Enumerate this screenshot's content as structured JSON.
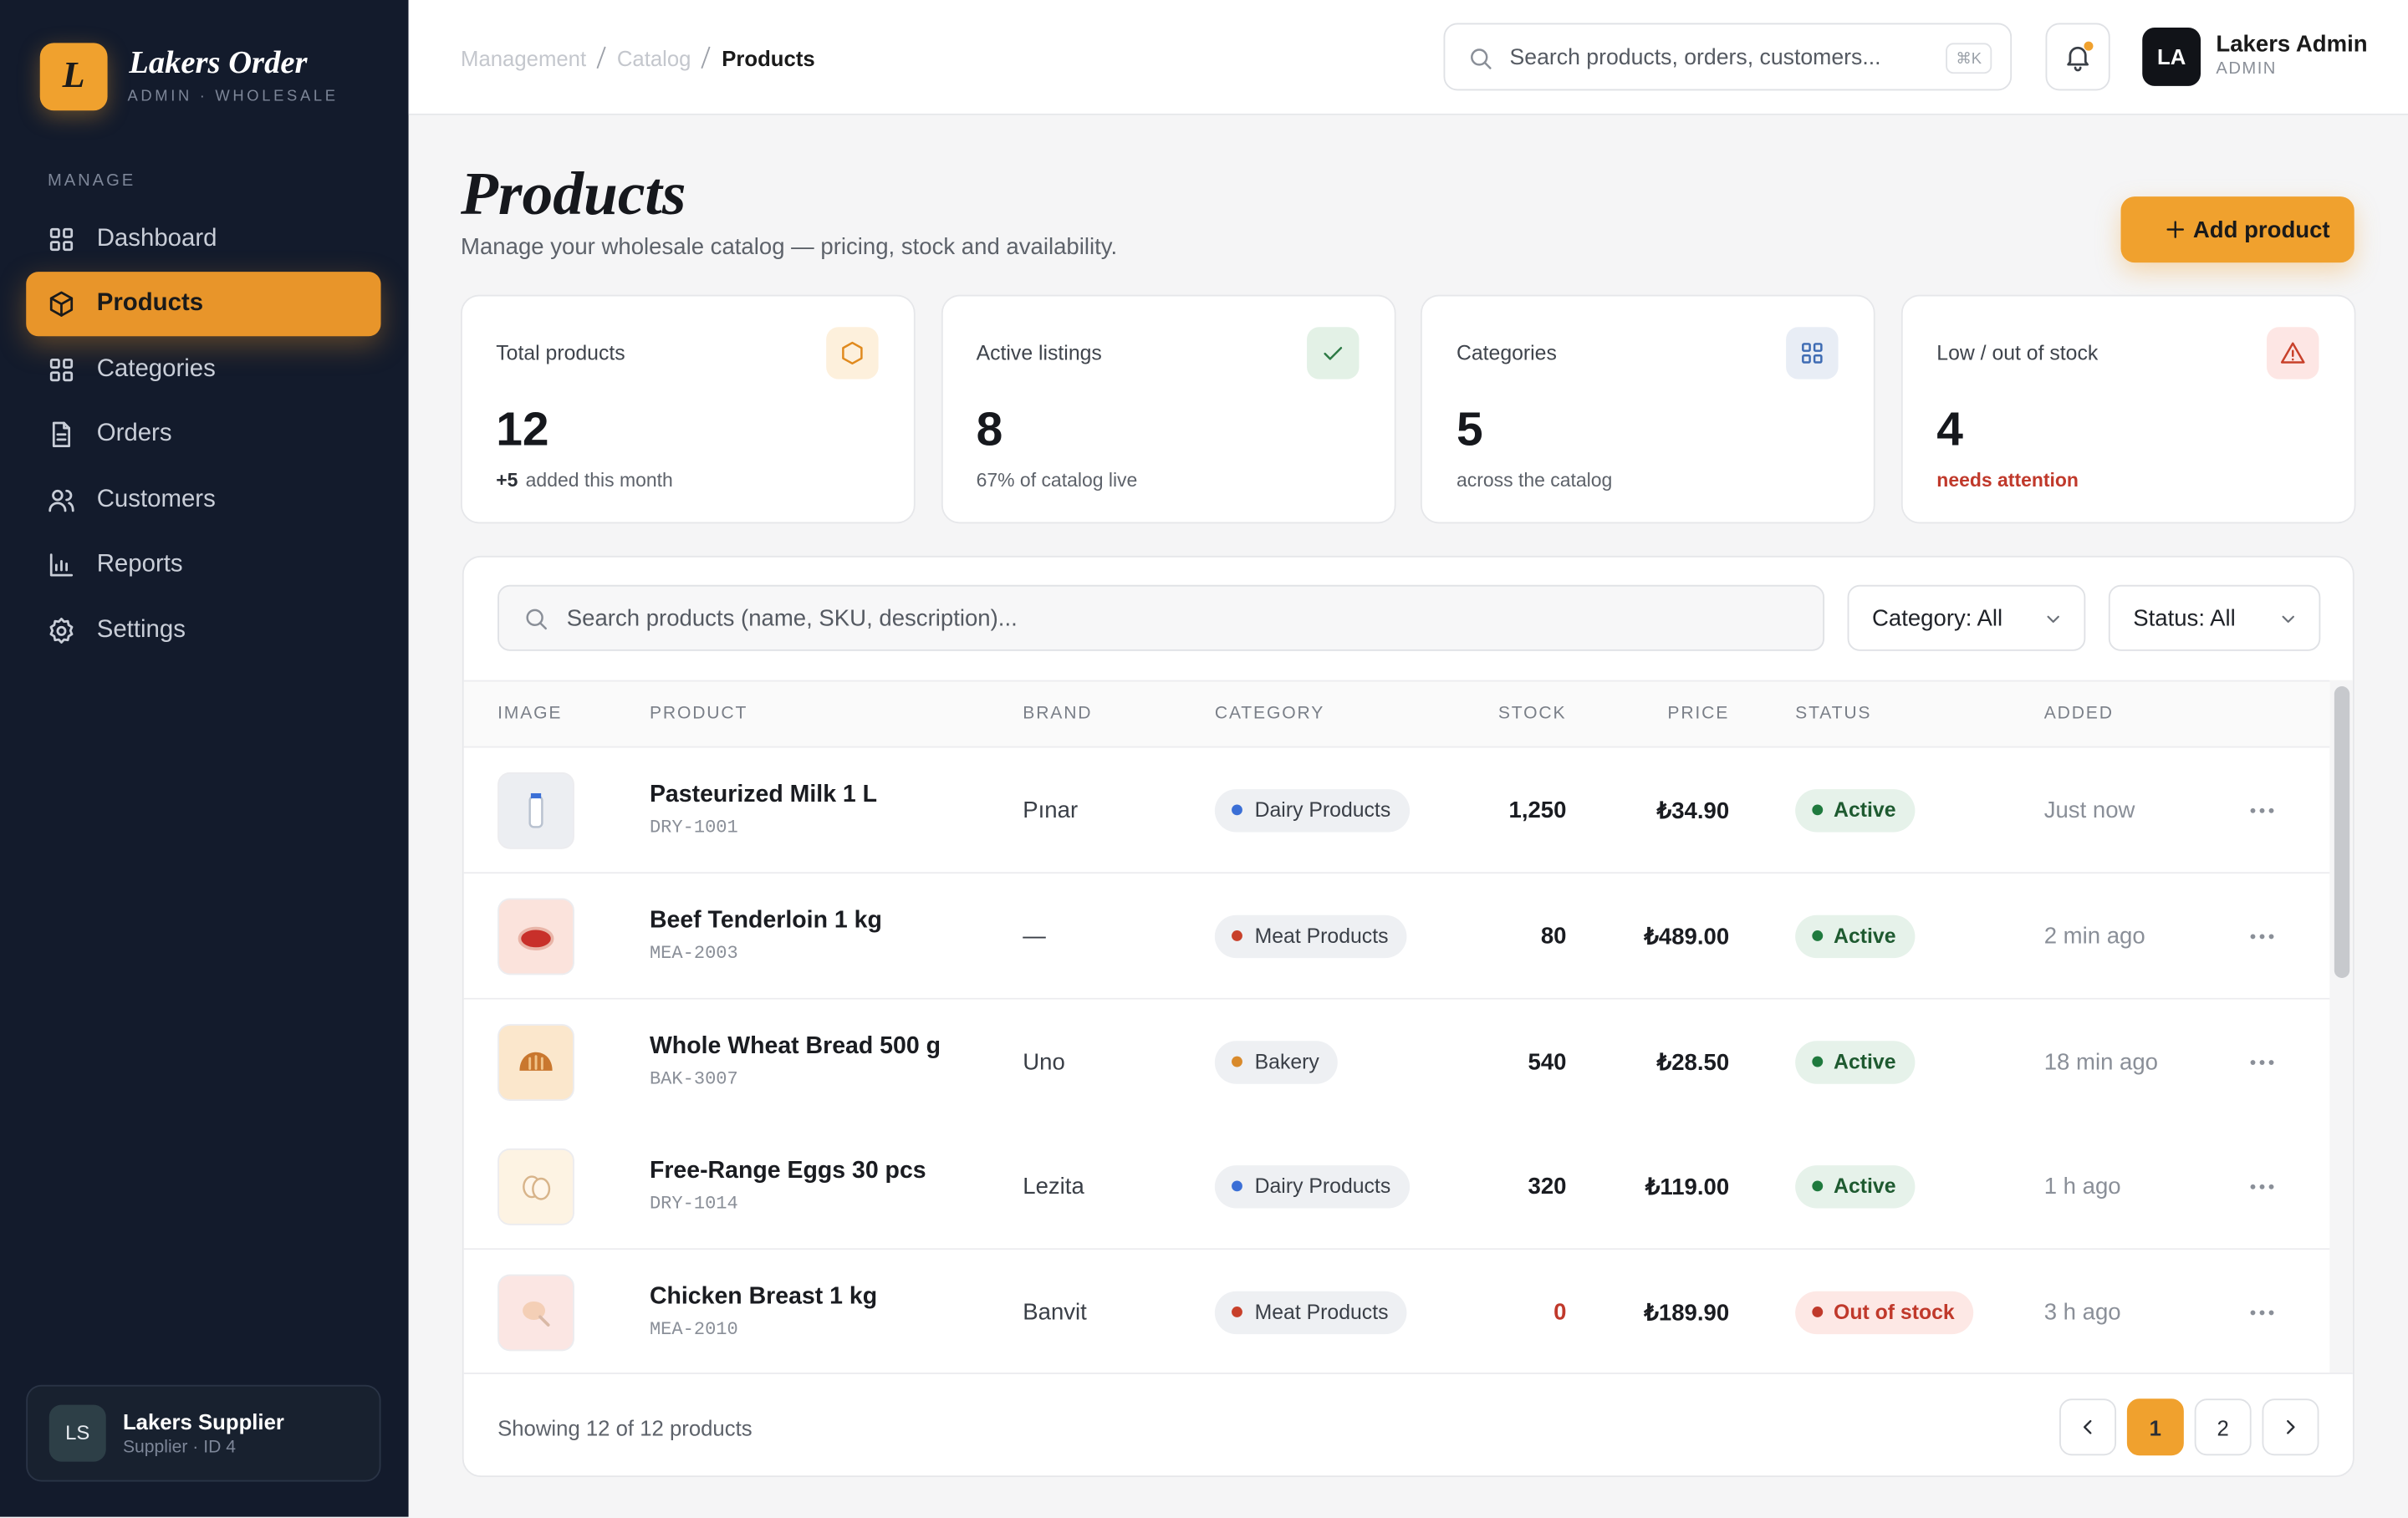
{
  "brand": {
    "logo": "L",
    "name": "Lakers Order",
    "subtitle": "ADMIN · WHOLESALE"
  },
  "sidebar": {
    "section": "MANAGE",
    "items": [
      "Dashboard",
      "Products",
      "Categories",
      "Orders",
      "Customers",
      "Reports",
      "Settings"
    ],
    "active": 1,
    "user": {
      "initials": "LS",
      "name": "Lakers Supplier",
      "role": "Supplier · ID 4"
    }
  },
  "topbar": {
    "breadcrumbs": [
      "Management",
      "Catalog",
      "Products"
    ],
    "search_placeholder": "Search products, orders, customers...",
    "shortcut": "⌘K",
    "user": {
      "initials": "LA",
      "name": "Lakers Admin",
      "role": "ADMIN"
    }
  },
  "header": {
    "title": "Products",
    "subtitle": "Manage your wholesale catalog — pricing, stock and availability.",
    "button": "Add product"
  },
  "stats": [
    {
      "label": "Total products",
      "value": 12,
      "delta": "+5",
      "note": "added this month"
    },
    {
      "label": "Active listings",
      "value": 8,
      "note": "67% of catalog live"
    },
    {
      "label": "Categories",
      "value": 5,
      "note": "across the catalog"
    },
    {
      "label": "Low / out of stock",
      "value": 4,
      "note": "needs attention",
      "note_color": "#c0392b"
    }
  ],
  "filters": {
    "search_placeholder": "Search products (name, SKU, description)...",
    "category": "Category: All",
    "status": "Status: All"
  },
  "table": {
    "columns": [
      "IMAGE",
      "PRODUCT",
      "BRAND",
      "CATEGORY",
      "STOCK",
      "PRICE",
      "STATUS",
      "ADDED"
    ],
    "rows": [
      {
        "name": "Pasteurized Milk 1 L",
        "sku": "DRY-1001",
        "brand": "Pınar",
        "category": "Dairy Products",
        "category_color": "#3b6fd6",
        "stock": "1,250",
        "price": "₺34.90",
        "status": "Active",
        "status_color": "#1f7a3e",
        "added": "Just now"
      },
      {
        "name": "Beef Tenderloin 1 kg",
        "sku": "MEA-2003",
        "brand": "—",
        "category": "Meat Products",
        "category_color": "#c8402a",
        "stock": "80",
        "price": "₺489.00",
        "status": "Active",
        "status_color": "#1f7a3e",
        "added": "2 min ago"
      },
      {
        "name": "Whole Wheat Bread 500 g",
        "sku": "BAK-3007",
        "brand": "Uno",
        "category": "Bakery",
        "category_color": "#d98a2b",
        "stock": "540",
        "price": "₺28.50",
        "status": "Active",
        "status_color": "#1f7a3e",
        "added": "18 min ago"
      },
      {
        "name": "Free-Range Eggs 30 pcs",
        "sku": "DRY-1014",
        "brand": "Lezita",
        "category": "Dairy Products",
        "category_color": "#3b6fd6",
        "stock": "320",
        "price": "₺119.00",
        "status": "Active",
        "status_color": "#1f7a3e",
        "added": "1 h ago"
      },
      {
        "name": "Chicken Breast 1 kg",
        "sku": "MEA-2010",
        "brand": "Banvit",
        "category": "Meat Products",
        "category_color": "#c8402a",
        "stock": "0",
        "stock_color": "#c0392b",
        "price": "₺189.90",
        "status": "Out of stock",
        "status_color": "#c0392b",
        "added": "3 h ago"
      }
    ]
  },
  "footer": {
    "summary": "Showing 12 of 12 products",
    "pages": [
      "1",
      "2"
    ],
    "current": 0
  }
}
